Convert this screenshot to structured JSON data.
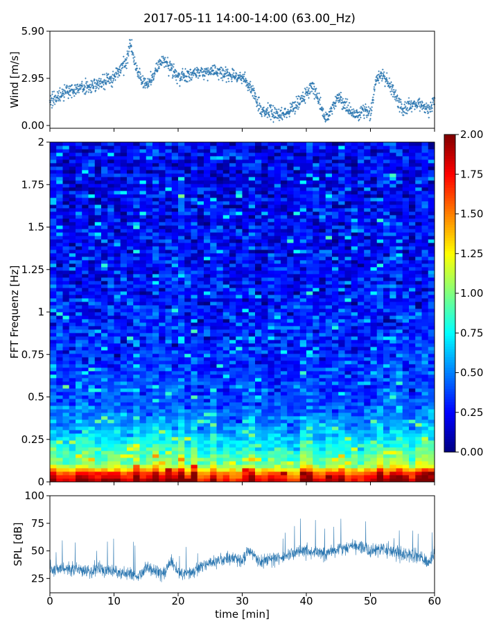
{
  "title": "2017-05-11 14:00-14:00 (63.00_Hz)",
  "colors": {
    "series": "#2a76b0",
    "spines": "#000000",
    "background": "#ffffff"
  },
  "chart_data": [
    {
      "name": "wind",
      "type": "scatter",
      "ylabel": "Wind [m/s]",
      "xlim": [
        0,
        60
      ],
      "ylim": [
        0,
        5.9
      ],
      "yticks": [
        "5.90",
        "2.95",
        "0.00"
      ],
      "ytick_values": [
        5.9,
        2.95,
        0.0
      ],
      "x_minutes": [
        0,
        2,
        4,
        6,
        8,
        10,
        11,
        12,
        12.5,
        13,
        14,
        15,
        16,
        17,
        18,
        20,
        22,
        24,
        26,
        28,
        30,
        31,
        32,
        33,
        35,
        37,
        39,
        41,
        42,
        43,
        44,
        45,
        46,
        48,
        49,
        50,
        51,
        52,
        53,
        55,
        57,
        59,
        60
      ],
      "wind_mean": [
        1.5,
        2.0,
        2.3,
        2.5,
        2.7,
        3.0,
        3.6,
        4.0,
        5.2,
        4.2,
        3.0,
        2.5,
        3.0,
        3.8,
        4.0,
        3.0,
        3.2,
        3.4,
        3.4,
        3.2,
        3.0,
        2.5,
        1.8,
        1.0,
        0.8,
        0.7,
        1.5,
        2.5,
        1.5,
        0.3,
        1.0,
        1.8,
        1.2,
        0.6,
        0.9,
        0.6,
        3.0,
        3.2,
        2.5,
        1.0,
        1.4,
        1.0,
        1.5
      ],
      "marker": "+"
    },
    {
      "name": "spectrogram",
      "type": "heatmap",
      "ylabel": "FFT Frequenz [Hz]",
      "xlim": [
        0,
        60
      ],
      "ylim": [
        0,
        2
      ],
      "yticks": [
        "2",
        "1.75",
        "1.5",
        "1.25",
        "1",
        "0.75",
        "0.5",
        "0.25",
        "0"
      ],
      "ytick_values": [
        2,
        1.75,
        1.5,
        1.25,
        1,
        0.75,
        0.5,
        0.25,
        0
      ],
      "colormap": "jet",
      "clim": [
        0,
        2
      ],
      "colorbar_ticks": [
        "2.00",
        "1.75",
        "1.50",
        "1.25",
        "1.00",
        "0.75",
        "0.50",
        "0.25",
        "0.00"
      ],
      "colorbar_tick_values": [
        2.0,
        1.75,
        1.5,
        1.25,
        1.0,
        0.75,
        0.5,
        0.25,
        0.0
      ],
      "profile_freq_hz": [
        0,
        0.05,
        0.1,
        0.2,
        0.3,
        0.4,
        0.5,
        0.75,
        1.0,
        1.5,
        2.0
      ],
      "profile_level": [
        2.0,
        1.7,
        1.05,
        0.85,
        0.62,
        0.48,
        0.4,
        0.34,
        0.3,
        0.25,
        0.22
      ]
    },
    {
      "name": "spl",
      "type": "line",
      "ylabel": "SPL [dB]",
      "xlabel": "time [min]",
      "xlim": [
        0,
        60
      ],
      "ylim": [
        12,
        100
      ],
      "xticks": [
        "0",
        "10",
        "20",
        "30",
        "40",
        "50",
        "60"
      ],
      "xtick_values": [
        0,
        10,
        20,
        30,
        40,
        50,
        60
      ],
      "yticks": [
        "100",
        "75",
        "50",
        "25"
      ],
      "ytick_values": [
        100,
        75,
        50,
        25
      ],
      "x_minutes": [
        0,
        2,
        4,
        6,
        8,
        10,
        12,
        14,
        15,
        16,
        18,
        19,
        20,
        22,
        24,
        26,
        28,
        30,
        31,
        33,
        35,
        37,
        40,
        43,
        46,
        48,
        50,
        52,
        55,
        58,
        59,
        60
      ],
      "spl_mean": [
        35,
        34,
        33,
        32,
        34,
        31,
        29,
        28,
        35,
        33,
        30,
        42,
        30,
        29,
        37,
        40,
        44,
        42,
        50,
        40,
        43,
        46,
        50,
        48,
        53,
        56,
        50,
        52,
        47,
        45,
        37,
        48
      ]
    }
  ]
}
